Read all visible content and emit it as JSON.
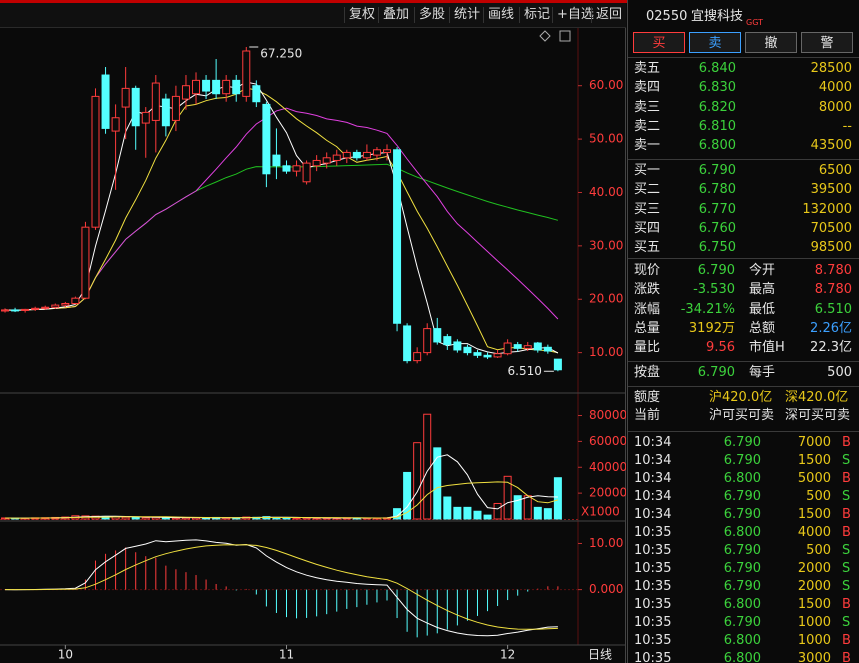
{
  "toolbar": {
    "buttons": [
      "复权",
      "叠加",
      "多股",
      "统计",
      "画线",
      "标记",
      "+自选",
      "返回"
    ]
  },
  "stock": {
    "code": "02550",
    "name": "宜搜科技",
    "tag": "GGT"
  },
  "actions": [
    "买",
    "卖",
    "撤",
    "警"
  ],
  "order_book": {
    "asks": [
      {
        "label": "卖五",
        "price": "6.840",
        "volume": "28500"
      },
      {
        "label": "卖四",
        "price": "6.830",
        "volume": "4000"
      },
      {
        "label": "卖三",
        "price": "6.820",
        "volume": "8000"
      },
      {
        "label": "卖二",
        "price": "6.810",
        "volume": "--"
      },
      {
        "label": "卖一",
        "price": "6.800",
        "volume": "43500"
      }
    ],
    "bids": [
      {
        "label": "买一",
        "price": "6.790",
        "volume": "6500"
      },
      {
        "label": "买二",
        "price": "6.780",
        "volume": "39500"
      },
      {
        "label": "买三",
        "price": "6.770",
        "volume": "132000"
      },
      {
        "label": "买四",
        "price": "6.760",
        "volume": "70500"
      },
      {
        "label": "买五",
        "price": "6.750",
        "volume": "98500"
      }
    ]
  },
  "stats": [
    [
      {
        "label": "现价",
        "value": "6.790",
        "color": "#3cd23c"
      },
      {
        "label": "今开",
        "value": "8.780",
        "color": "#ff3c3c"
      }
    ],
    [
      {
        "label": "涨跌",
        "value": "-3.530",
        "color": "#3cd23c"
      },
      {
        "label": "最高",
        "value": "8.780",
        "color": "#ff3c3c"
      }
    ],
    [
      {
        "label": "涨幅",
        "value": "-34.21%",
        "color": "#3cd23c"
      },
      {
        "label": "最低",
        "value": "6.510",
        "color": "#3cd23c"
      }
    ],
    [
      {
        "label": "总量",
        "value": "3192万",
        "color": "#e8c81a"
      },
      {
        "label": "总额",
        "value": "2.26亿",
        "color": "#3ca0ff"
      }
    ],
    [
      {
        "label": "量比",
        "value": "9.56",
        "color": "#ff3c3c"
      },
      {
        "label": "市值H",
        "value": "22.3亿",
        "color": "#e6e6e6"
      }
    ]
  ],
  "quote_row": [
    {
      "label": "按盘",
      "value": "6.790",
      "color": "#3cd23c"
    },
    {
      "label": "每手",
      "value": "500",
      "color": "#e6e6e6"
    }
  ],
  "quota": {
    "label": "额度",
    "values": [
      "沪420.0亿",
      "深420.0亿"
    ]
  },
  "current": {
    "label": "当前",
    "values": [
      "沪可买可卖",
      "深可买可卖"
    ]
  },
  "trades": [
    [
      "10:34",
      "6.790",
      "7000",
      "B"
    ],
    [
      "10:34",
      "6.790",
      "1500",
      "S"
    ],
    [
      "10:34",
      "6.800",
      "5000",
      "B"
    ],
    [
      "10:34",
      "6.790",
      "500",
      "S"
    ],
    [
      "10:34",
      "6.790",
      "1500",
      "B"
    ],
    [
      "10:35",
      "6.800",
      "4000",
      "B"
    ],
    [
      "10:35",
      "6.790",
      "500",
      "S"
    ],
    [
      "10:35",
      "6.790",
      "2000",
      "S"
    ],
    [
      "10:35",
      "6.790",
      "2000",
      "S"
    ],
    [
      "10:35",
      "6.800",
      "1500",
      "B"
    ],
    [
      "10:35",
      "6.790",
      "1000",
      "S"
    ],
    [
      "10:35",
      "6.800",
      "1000",
      "B"
    ],
    [
      "10:35",
      "6.800",
      "3000",
      "B"
    ]
  ],
  "chart_data": {
    "type": "candlestick",
    "open": [
      17.8,
      18.0,
      17.9,
      18.1,
      18.3,
      18.5,
      18.9,
      19.2,
      20.2,
      33.5,
      62.0,
      51.5,
      56.0,
      59.5,
      53.0,
      53.5,
      57.5,
      53.5,
      57.5,
      58.5,
      61.0,
      61.0,
      58.5,
      61.0,
      58.0,
      60.0,
      56.5,
      47.0,
      45.0,
      44.0,
      42.0,
      45.0,
      45.5,
      46.0,
      46.5,
      47.5,
      46.5,
      47.0,
      47.5,
      48.0,
      15.0,
      8.5,
      10.0,
      14.5,
      13.0,
      12.0,
      11.0,
      10.0,
      9.5,
      9.2,
      9.8,
      11.5,
      10.8,
      11.8,
      11.0,
      8.78
    ],
    "high": [
      18.3,
      18.4,
      18.2,
      18.6,
      18.8,
      19.2,
      19.5,
      20.5,
      34.5,
      59.5,
      63.5,
      56.5,
      63.5,
      60.0,
      56.0,
      62.0,
      58.5,
      60.0,
      62.0,
      62.5,
      62.0,
      65.0,
      62.0,
      62.0,
      67.25,
      61.0,
      57.0,
      52.0,
      46.0,
      46.0,
      46.0,
      47.0,
      47.5,
      48.0,
      48.0,
      48.0,
      49.0,
      48.5,
      49.0,
      48.5,
      15.5,
      11.0,
      15.5,
      16.5,
      13.5,
      12.5,
      11.5,
      10.5,
      10.0,
      10.5,
      12.5,
      12.0,
      12.0,
      12.0,
      11.5,
      8.78
    ],
    "low": [
      17.5,
      17.6,
      17.5,
      17.8,
      18.0,
      18.2,
      18.5,
      19.0,
      20.0,
      33.0,
      51.0,
      40.5,
      50.0,
      48.0,
      46.5,
      47.5,
      50.5,
      51.5,
      55.5,
      56.5,
      57.5,
      57.5,
      57.0,
      57.0,
      57.0,
      56.0,
      41.0,
      42.5,
      43.5,
      43.0,
      41.5,
      44.0,
      44.5,
      45.0,
      45.5,
      46.0,
      46.0,
      46.0,
      46.0,
      14.0,
      8.0,
      8.0,
      9.5,
      11.5,
      10.5,
      10.0,
      9.5,
      9.0,
      8.8,
      9.0,
      9.5,
      10.2,
      10.3,
      10.0,
      9.8,
      6.51
    ],
    "close": [
      18.0,
      17.9,
      18.1,
      18.3,
      18.5,
      18.9,
      19.2,
      20.2,
      33.5,
      58.0,
      52.0,
      54.0,
      59.5,
      52.5,
      55.0,
      60.5,
      52.5,
      58.0,
      60.0,
      61.0,
      59.0,
      58.5,
      61.0,
      58.5,
      66.5,
      57.0,
      43.5,
      45.0,
      44.0,
      45.0,
      45.5,
      46.0,
      46.5,
      47.0,
      47.5,
      46.5,
      47.5,
      48.0,
      48.0,
      15.5,
      8.5,
      10.0,
      14.5,
      12.0,
      11.5,
      10.5,
      10.0,
      9.5,
      9.2,
      9.8,
      11.8,
      10.8,
      11.3,
      10.5,
      10.3,
      6.79
    ],
    "volume": [
      800,
      600,
      700,
      900,
      1000,
      1200,
      1500,
      2500,
      2400,
      2200,
      2000,
      1600,
      1400,
      1200,
      1100,
      1300,
      1000,
      900,
      1000,
      1100,
      900,
      1200,
      1000,
      900,
      1500,
      1300,
      1800,
      1200,
      900,
      800,
      900,
      700,
      800,
      700,
      900,
      800,
      700,
      800,
      900,
      8000,
      36000,
      59000,
      81000,
      55000,
      17000,
      9000,
      9000,
      6000,
      3000,
      12000,
      33000,
      18000,
      18000,
      9000,
      8000,
      31920
    ],
    "xlim": [
      -0.5,
      57
    ],
    "xticks": [
      {
        "value": 6,
        "label": "10"
      },
      {
        "value": 28,
        "label": "11"
      },
      {
        "value": 50,
        "label": "12"
      }
    ],
    "period_label": "日线",
    "ylim": [
      3,
      68
    ],
    "yticks": [
      {
        "value": 10,
        "label": "10.00"
      },
      {
        "value": 20,
        "label": "20.00"
      },
      {
        "value": 30,
        "label": "30.00"
      },
      {
        "value": 40,
        "label": "40.00"
      },
      {
        "value": 50,
        "label": "50.00"
      },
      {
        "value": 60,
        "label": "60.00"
      }
    ],
    "annotations": [
      {
        "value": 67.25,
        "label": "67.250"
      },
      {
        "value": 6.51,
        "label": "6.510"
      }
    ],
    "volume_ylim": [
      0,
      92000
    ],
    "volume_yticks": [
      20000,
      40000,
      60000,
      80000
    ],
    "volume_unit": "X1000",
    "macd_ylim": [
      -12,
      14
    ],
    "macd_yticks": [
      {
        "value": 10,
        "label": "10.00"
      },
      {
        "value": 0,
        "label": "0.000"
      }
    ],
    "up_color": "#ff3c3c",
    "down_color": "#54ffff"
  }
}
